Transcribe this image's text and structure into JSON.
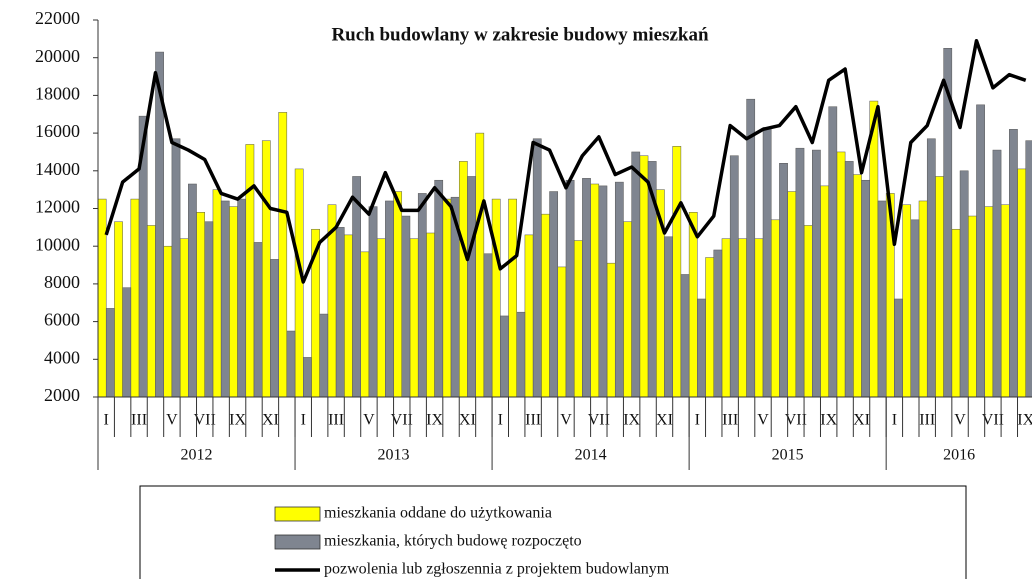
{
  "chart_data": {
    "type": "bar_line",
    "title": "Ruch budowlany w zakresie budowy mieszkań",
    "categories": [
      "I",
      null,
      "III",
      null,
      "V",
      null,
      "VII",
      null,
      "IX",
      null,
      "XI",
      null,
      "I",
      null,
      "III",
      null,
      "V",
      null,
      "VII",
      null,
      "IX",
      null,
      "XI",
      null,
      "I",
      null,
      "III",
      null,
      "V",
      null,
      "VII",
      null,
      "IX",
      null,
      "XI",
      null,
      "I",
      null,
      "III",
      null,
      "V",
      null,
      "VII",
      null,
      "IX",
      null,
      "XI",
      null,
      "I",
      null,
      "III",
      null,
      "V",
      null,
      "VII",
      null,
      "IX"
    ],
    "x_groups": [
      {
        "label": "2012",
        "count": 12
      },
      {
        "label": "2013",
        "count": 12
      },
      {
        "label": "2014",
        "count": 12
      },
      {
        "label": "2015",
        "count": 12
      },
      {
        "label": "2016",
        "count": 9
      }
    ],
    "series": [
      {
        "name": "mieszkania oddane do użytkowania",
        "kind": "bar",
        "color": "#ffff00",
        "values": [
          12500,
          11300,
          12500,
          11100,
          10000,
          10400,
          11800,
          13000,
          12100,
          15400,
          15600,
          17100,
          14100,
          10900,
          12200,
          10600,
          9700,
          10400,
          12900,
          10400,
          10700,
          12500,
          14500,
          16000,
          12500,
          12500,
          10600,
          11700,
          8900,
          10300,
          13300,
          9100,
          11300,
          14800,
          13000,
          15300,
          11800,
          9400,
          10400,
          10400,
          10400,
          11400,
          12900,
          11100,
          13200,
          15000,
          13800,
          17700,
          12800,
          12200,
          12400,
          13700,
          10900,
          11600,
          12100,
          12200,
          14100
        ]
      },
      {
        "name": "mieszkania, których budowę rozpoczęto",
        "kind": "bar",
        "color": "#7f8590",
        "values": [
          6700,
          7800,
          16900,
          20300,
          15700,
          13300,
          11300,
          12400,
          12500,
          10200,
          9300,
          5500,
          4100,
          6400,
          11000,
          13700,
          12100,
          12400,
          11600,
          12800,
          13500,
          12600,
          13700,
          9600,
          6300,
          6500,
          15700,
          12900,
          13500,
          13600,
          13200,
          13400,
          15000,
          14500,
          10500,
          8500,
          7200,
          9800,
          14800,
          17800,
          16300,
          14400,
          15200,
          15100,
          17400,
          14500,
          13500,
          12400,
          7200,
          11400,
          15700,
          20500,
          14000,
          17500,
          15100,
          16200,
          15600
        ]
      },
      {
        "name": "pozwolenia lub zgłoszennia z projektem budowlanym",
        "kind": "line",
        "color": "#000000",
        "values": [
          10600,
          13400,
          14100,
          19200,
          15500,
          15100,
          14600,
          12800,
          12500,
          13200,
          12000,
          11800,
          8100,
          10200,
          11000,
          12600,
          11700,
          13900,
          11900,
          11900,
          13100,
          12100,
          9300,
          12400,
          8800,
          9500,
          15500,
          15100,
          13100,
          14800,
          15800,
          13800,
          14200,
          13400,
          10700,
          12300,
          10500,
          11600,
          16400,
          15700,
          16200,
          16400,
          17400,
          15500,
          18800,
          19400,
          13900,
          17400,
          10100,
          15500,
          16400,
          18800,
          16300,
          20900,
          18400,
          19100,
          18800
        ]
      }
    ],
    "ylim": [
      2000,
      22000
    ],
    "yticks": [
      2000,
      4000,
      6000,
      8000,
      10000,
      12000,
      14000,
      16000,
      18000,
      20000,
      22000
    ]
  }
}
